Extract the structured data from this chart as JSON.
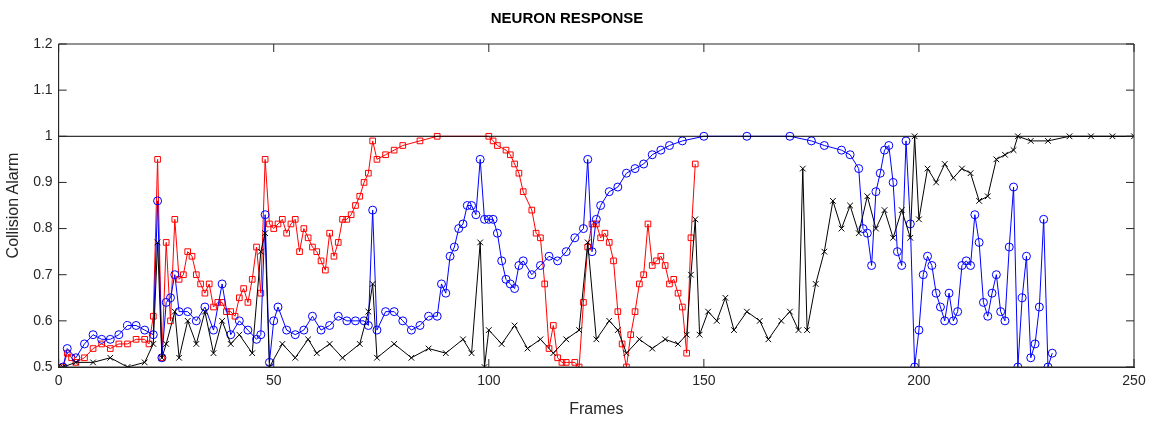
{
  "chart_data": {
    "type": "line",
    "title": "NEURON RESPONSE",
    "xlabel": "Frames",
    "ylabel": "Collision Alarm",
    "xlim": [
      0,
      250
    ],
    "xticks": [
      0,
      50,
      100,
      150,
      200,
      250
    ],
    "ylim": [
      0.5,
      1.2
    ],
    "yticks": [
      0.5,
      0.6,
      0.7,
      0.8,
      0.9,
      1,
      1.1,
      1.2
    ],
    "grid": false,
    "legend": false,
    "line_style": "solid",
    "ref_lines": [
      {
        "axis": "y",
        "value": 1,
        "color": "#000000"
      }
    ],
    "series": [
      {
        "color": "#000000",
        "marker": "cross",
        "x": [
          1,
          4,
          8,
          12,
          16,
          20,
          22,
          23,
          24,
          25,
          27,
          28,
          30,
          32,
          34,
          36,
          38,
          40,
          42,
          45,
          47,
          48,
          49,
          52,
          55,
          58,
          60,
          63,
          66,
          70,
          72,
          73,
          74,
          78,
          82,
          86,
          90,
          94,
          96,
          98,
          99,
          100,
          103,
          106,
          109,
          112,
          115,
          118,
          121,
          123,
          125,
          128,
          130,
          132,
          135,
          138,
          141,
          144,
          146,
          147,
          148,
          149,
          151,
          153,
          155,
          157,
          160,
          163,
          165,
          168,
          170,
          172,
          173,
          174,
          176,
          178,
          180,
          182,
          184,
          186,
          188,
          190,
          192,
          194,
          196,
          198,
          199,
          200,
          202,
          204,
          206,
          208,
          210,
          212,
          214,
          216,
          218,
          220,
          222,
          223,
          226,
          230,
          235,
          240,
          245,
          250
        ],
        "values": [
          0.5,
          0.51,
          0.51,
          0.52,
          0.5,
          0.51,
          0.55,
          0.77,
          0.52,
          0.55,
          0.62,
          0.52,
          0.6,
          0.55,
          0.62,
          0.53,
          0.6,
          0.55,
          0.57,
          0.53,
          0.75,
          0.79,
          0.5,
          0.55,
          0.52,
          0.56,
          0.53,
          0.55,
          0.52,
          0.55,
          0.62,
          0.68,
          0.52,
          0.55,
          0.52,
          0.54,
          0.53,
          0.56,
          0.53,
          0.77,
          0.5,
          0.58,
          0.55,
          0.59,
          0.54,
          0.56,
          0.53,
          0.56,
          0.58,
          0.77,
          0.56,
          0.6,
          0.58,
          0.53,
          0.56,
          0.54,
          0.56,
          0.55,
          0.57,
          0.7,
          0.82,
          0.57,
          0.62,
          0.6,
          0.65,
          0.58,
          0.62,
          0.6,
          0.56,
          0.6,
          0.62,
          0.58,
          0.93,
          0.58,
          0.68,
          0.75,
          0.86,
          0.8,
          0.85,
          0.79,
          0.87,
          0.8,
          0.84,
          0.78,
          0.84,
          0.78,
          1,
          0.82,
          0.93,
          0.9,
          0.94,
          0.91,
          0.93,
          0.92,
          0.86,
          0.87,
          0.95,
          0.96,
          0.97,
          1,
          0.99,
          0.99,
          1,
          1,
          1,
          1
        ]
      },
      {
        "color": "#0000ff",
        "marker": "circle",
        "x": [
          1,
          2,
          4,
          6,
          8,
          10,
          12,
          14,
          16,
          18,
          20,
          22,
          23,
          24,
          25,
          26,
          27,
          28,
          30,
          32,
          34,
          36,
          38,
          40,
          42,
          44,
          46,
          47,
          48,
          49,
          50,
          51,
          53,
          55,
          57,
          59,
          61,
          63,
          65,
          67,
          69,
          71,
          72,
          73,
          74,
          76,
          78,
          80,
          82,
          84,
          86,
          88,
          89,
          90,
          91,
          92,
          93,
          94,
          95,
          96,
          97,
          98,
          99,
          100,
          101,
          102,
          103,
          104,
          105,
          106,
          107,
          108,
          110,
          112,
          114,
          116,
          118,
          120,
          122,
          123,
          124,
          125,
          126,
          128,
          130,
          132,
          134,
          136,
          138,
          140,
          142,
          145,
          150,
          160,
          170,
          175,
          178,
          182,
          184,
          186,
          187,
          188,
          189,
          190,
          191,
          192,
          193,
          194,
          195,
          196,
          197,
          198,
          199,
          200,
          201,
          202,
          203,
          204,
          205,
          206,
          207,
          208,
          209,
          210,
          211,
          212,
          213,
          214,
          215,
          216,
          217,
          218,
          219,
          220,
          221,
          222,
          223,
          224,
          225,
          226,
          227,
          228,
          229,
          230,
          231
        ],
        "values": [
          0.5,
          0.54,
          0.52,
          0.55,
          0.57,
          0.56,
          0.56,
          0.57,
          0.59,
          0.59,
          0.58,
          0.57,
          0.86,
          0.52,
          0.64,
          0.65,
          0.7,
          0.62,
          0.62,
          0.6,
          0.63,
          0.58,
          0.68,
          0.57,
          0.6,
          0.58,
          0.56,
          0.57,
          0.83,
          0.51,
          0.6,
          0.63,
          0.58,
          0.57,
          0.58,
          0.61,
          0.58,
          0.59,
          0.61,
          0.6,
          0.6,
          0.6,
          0.59,
          0.84,
          0.58,
          0.62,
          0.62,
          0.6,
          0.58,
          0.59,
          0.61,
          0.61,
          0.68,
          0.66,
          0.74,
          0.76,
          0.8,
          0.81,
          0.85,
          0.85,
          0.83,
          0.95,
          0.82,
          0.82,
          0.82,
          0.79,
          0.73,
          0.69,
          0.68,
          0.67,
          0.72,
          0.73,
          0.7,
          0.72,
          0.74,
          0.73,
          0.75,
          0.78,
          0.8,
          0.95,
          0.75,
          0.82,
          0.85,
          0.88,
          0.89,
          0.92,
          0.93,
          0.94,
          0.96,
          0.97,
          0.98,
          0.99,
          1,
          1,
          1,
          0.99,
          0.98,
          0.97,
          0.96,
          0.93,
          0.8,
          0.79,
          0.72,
          0.88,
          0.92,
          0.97,
          0.98,
          0.9,
          0.75,
          0.72,
          0.99,
          0.81,
          0.5,
          0.58,
          0.7,
          0.74,
          0.72,
          0.66,
          0.63,
          0.6,
          0.66,
          0.6,
          0.62,
          0.72,
          0.73,
          0.72,
          0.83,
          0.77,
          0.64,
          0.61,
          0.66,
          0.7,
          0.62,
          0.6,
          0.76,
          0.89,
          0.5,
          0.65,
          0.74,
          0.52,
          0.55,
          0.63,
          0.82,
          0.5,
          0.53
        ]
      },
      {
        "color": "#ff0000",
        "marker": "square",
        "x": [
          1,
          2,
          3,
          4,
          6,
          8,
          10,
          12,
          14,
          16,
          18,
          20,
          21,
          22,
          23,
          24,
          25,
          26,
          27,
          28,
          29,
          30,
          31,
          32,
          33,
          34,
          35,
          36,
          37,
          38,
          39,
          40,
          41,
          42,
          43,
          44,
          45,
          46,
          47,
          48,
          49,
          50,
          51,
          52,
          53,
          54,
          55,
          56,
          57,
          58,
          59,
          60,
          61,
          62,
          63,
          64,
          65,
          66,
          67,
          68,
          69,
          70,
          71,
          72,
          73,
          74,
          76,
          78,
          80,
          84,
          88,
          100,
          101,
          102,
          104,
          105,
          106,
          107,
          108,
          110,
          111,
          112,
          113,
          114,
          115,
          116,
          117,
          118,
          120,
          121,
          122,
          123,
          124,
          125,
          126,
          127,
          128,
          129,
          130,
          131,
          132,
          133,
          134,
          135,
          136,
          137,
          138,
          139,
          140,
          141,
          142,
          143,
          144,
          145,
          146,
          147,
          148
        ],
        "values": [
          0.5,
          0.53,
          0.52,
          0.51,
          0.52,
          0.54,
          0.55,
          0.54,
          0.55,
          0.55,
          0.56,
          0.56,
          0.55,
          0.61,
          0.95,
          0.52,
          0.77,
          0.6,
          0.82,
          0.69,
          0.7,
          0.75,
          0.74,
          0.7,
          0.68,
          0.66,
          0.68,
          0.63,
          0.64,
          0.64,
          0.62,
          0.62,
          0.61,
          0.65,
          0.67,
          0.64,
          0.69,
          0.76,
          0.66,
          0.95,
          0.81,
          0.8,
          0.81,
          0.82,
          0.79,
          0.81,
          0.82,
          0.75,
          0.8,
          0.78,
          0.76,
          0.75,
          0.73,
          0.71,
          0.79,
          0.74,
          0.77,
          0.82,
          0.82,
          0.83,
          0.85,
          0.87,
          0.9,
          0.92,
          0.99,
          0.95,
          0.96,
          0.97,
          0.98,
          0.99,
          1,
          1,
          0.99,
          0.98,
          0.97,
          0.96,
          0.94,
          0.92,
          0.88,
          0.84,
          0.79,
          0.78,
          0.68,
          0.54,
          0.59,
          0.52,
          0.51,
          0.51,
          0.51,
          0.5,
          0.64,
          0.76,
          0.81,
          0.81,
          0.78,
          0.79,
          0.77,
          0.73,
          0.62,
          0.55,
          0.5,
          0.57,
          0.62,
          0.68,
          0.7,
          0.81,
          0.72,
          0.73,
          0.74,
          0.72,
          0.68,
          0.69,
          0.66,
          0.63,
          0.53,
          0.78,
          0.94
        ]
      }
    ]
  }
}
